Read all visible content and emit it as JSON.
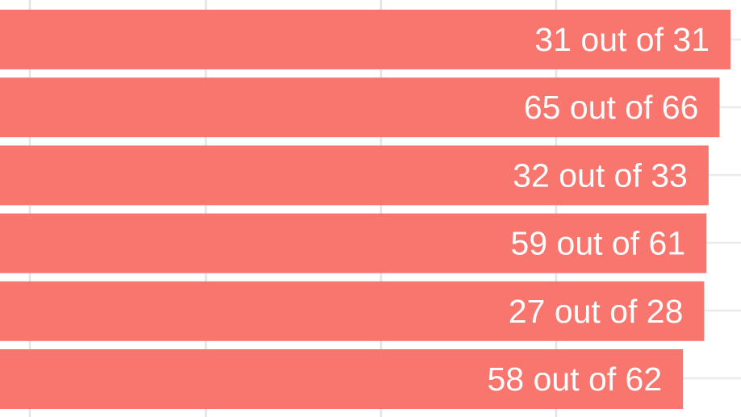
{
  "chart_data": {
    "type": "bar",
    "orientation": "horizontal",
    "grid": true,
    "colors": {
      "bar": "#f8766d",
      "label": "#ffffff",
      "grid": "#e6e6e6"
    },
    "bars": [
      {
        "value": 100.0,
        "label": "31 out of 31"
      },
      {
        "value": 98.5,
        "label": "65 out of 66"
      },
      {
        "value": 97.0,
        "label": "32 out of 33"
      },
      {
        "value": 96.7,
        "label": "59 out of 61"
      },
      {
        "value": 96.4,
        "label": "27 out of 28"
      },
      {
        "value": 93.5,
        "label": "58 out of 62"
      }
    ]
  }
}
